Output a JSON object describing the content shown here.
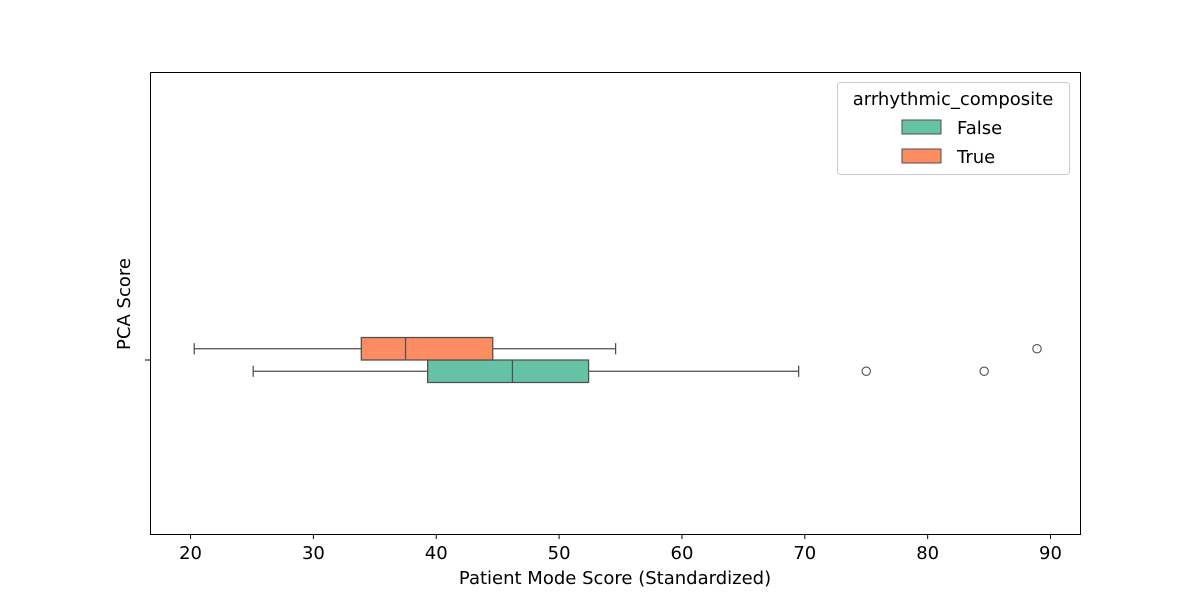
{
  "chart_data": {
    "type": "boxplot",
    "orientation": "horizontal",
    "xlabel": "Patient Mode Score (Standardized)",
    "ylabel": "PCA Score",
    "xlim": [
      16.7,
      92.4
    ],
    "xticks": [
      20,
      30,
      40,
      50,
      60,
      70,
      80,
      90
    ],
    "grid": false,
    "legend": {
      "title": "arrhythmic_composite",
      "placement": "top-right",
      "entries": [
        "False",
        "True"
      ]
    },
    "series": [
      {
        "name": "False",
        "color": "#66c2a5",
        "whisker_low": 25.1,
        "q1": 39.3,
        "median": 46.2,
        "q3": 52.4,
        "whisker_high": 69.5,
        "outliers": [
          75.0,
          84.6
        ]
      },
      {
        "name": "True",
        "color": "#fc8d62",
        "whisker_low": 20.3,
        "q1": 33.9,
        "median": 37.5,
        "q3": 44.6,
        "whisker_high": 54.6,
        "outliers": [
          88.9
        ]
      }
    ]
  }
}
